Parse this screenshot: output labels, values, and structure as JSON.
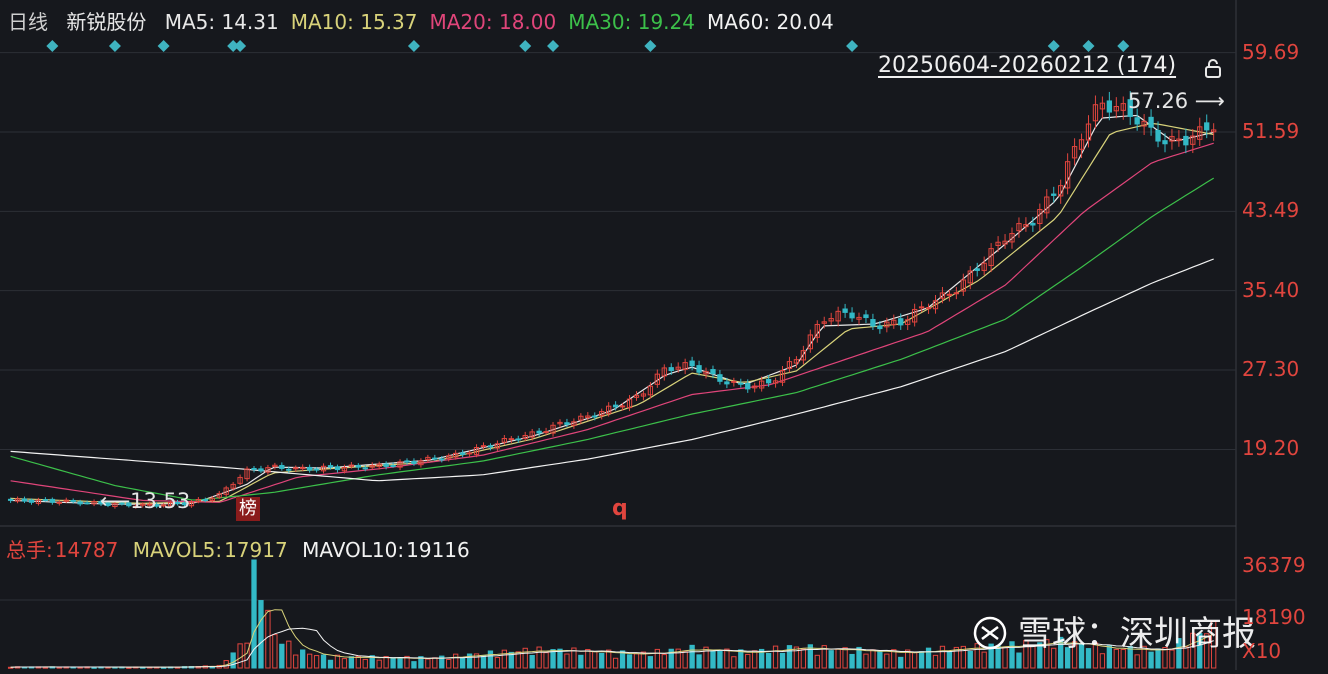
{
  "header": {
    "period": "日线",
    "stock_name": "新锐股份",
    "ma": [
      {
        "label": "MA5:",
        "value": "14.31",
        "color": "#e8e8e8"
      },
      {
        "label": "MA10:",
        "value": "15.37",
        "color": "#d8d27a"
      },
      {
        "label": "MA20:",
        "value": "18.00",
        "color": "#e0457a"
      },
      {
        "label": "MA30:",
        "value": "19.24",
        "color": "#3cc04a"
      },
      {
        "label": "MA60:",
        "value": "20.04",
        "color": "#f2f2f2"
      }
    ]
  },
  "range_label": "20250604-20260212 (174)",
  "high_label": "57.26",
  "low_label": "13.53",
  "badge": "榜",
  "marker_q": "q",
  "volume_header": {
    "total_label": "总手:",
    "total_value": "14787",
    "mavol5_label": "MAVOL5:",
    "mavol5_value": "17917",
    "mavol10_label": "MAVOL10:",
    "mavol10_value": "19116"
  },
  "watermark": "雪球：深圳商报",
  "colors": {
    "up": "#e0453e",
    "down": "#33b9c6",
    "bg": "#16181d",
    "grid": "#2c2f36",
    "diamond": "#3fb3c0"
  },
  "chart_data": {
    "type": "candlestick",
    "count": 174,
    "date_range": [
      "20250604",
      "20260212"
    ],
    "price_axis": {
      "ticks": [
        59.69,
        51.59,
        43.49,
        35.4,
        27.3,
        19.2
      ],
      "range": [
        12.0,
        62.0
      ]
    },
    "volume_axis": {
      "ticks": [
        "36379",
        "18190",
        "X10"
      ],
      "range": [
        0,
        36379
      ]
    },
    "price_keyframes": [
      [
        0,
        14.0
      ],
      [
        10,
        13.9
      ],
      [
        20,
        13.6
      ],
      [
        25,
        13.5
      ],
      [
        30,
        13.6
      ],
      [
        35,
        13.8
      ],
      [
        40,
        14.6
      ],
      [
        45,
        17.0
      ],
      [
        50,
        17.4
      ],
      [
        55,
        17.2
      ],
      [
        60,
        17.3
      ],
      [
        65,
        17.4
      ],
      [
        70,
        17.5
      ],
      [
        75,
        17.8
      ],
      [
        80,
        18.2
      ],
      [
        85,
        18.6
      ],
      [
        90,
        19.4
      ],
      [
        95,
        20.2
      ],
      [
        100,
        20.8
      ],
      [
        105,
        21.8
      ],
      [
        110,
        22.5
      ],
      [
        115,
        23.5
      ],
      [
        120,
        24.6
      ],
      [
        125,
        27.5
      ],
      [
        130,
        27.8
      ],
      [
        135,
        26.4
      ],
      [
        140,
        25.6
      ],
      [
        145,
        26.0
      ],
      [
        150,
        28.5
      ],
      [
        155,
        32.5
      ],
      [
        160,
        33.2
      ],
      [
        165,
        31.8
      ],
      [
        170,
        32.2
      ],
      [
        175,
        34.0
      ],
      [
        180,
        35.3
      ],
      [
        185,
        38.0
      ],
      [
        190,
        41.0
      ],
      [
        195,
        42.5
      ],
      [
        200,
        46.0
      ],
      [
        205,
        52.0
      ],
      [
        208,
        54.5
      ],
      [
        212,
        54.0
      ],
      [
        215,
        53.0
      ],
      [
        218,
        51.5
      ],
      [
        221,
        50.5
      ],
      [
        224,
        50.8
      ],
      [
        227,
        51.5
      ],
      [
        230,
        52.5
      ]
    ],
    "volume_keyframes": [
      [
        0,
        400
      ],
      [
        30,
        300
      ],
      [
        40,
        800
      ],
      [
        45,
        10000
      ],
      [
        47,
        36379
      ],
      [
        50,
        12000
      ],
      [
        55,
        6000
      ],
      [
        60,
        4000
      ],
      [
        80,
        3500
      ],
      [
        90,
        5000
      ],
      [
        100,
        6500
      ],
      [
        110,
        6000
      ],
      [
        120,
        5000
      ],
      [
        130,
        7000
      ],
      [
        140,
        5500
      ],
      [
        150,
        7500
      ],
      [
        160,
        6500
      ],
      [
        170,
        5500
      ],
      [
        180,
        7000
      ],
      [
        190,
        8000
      ],
      [
        200,
        9500
      ],
      [
        210,
        7000
      ],
      [
        220,
        6500
      ],
      [
        230,
        14787
      ]
    ],
    "ma_series": [
      {
        "name": "MA5",
        "color": "#e8e8e8",
        "values": [
          [
            0,
            14.0
          ],
          [
            20,
            13.6
          ],
          [
            35,
            13.7
          ],
          [
            45,
            15.6
          ],
          [
            50,
            17.4
          ],
          [
            60,
            17.3
          ],
          [
            80,
            18.1
          ],
          [
            100,
            20.6
          ],
          [
            115,
            23.2
          ],
          [
            125,
            26.8
          ],
          [
            130,
            27.6
          ],
          [
            140,
            25.8
          ],
          [
            150,
            27.8
          ],
          [
            155,
            31.8
          ],
          [
            165,
            32.0
          ],
          [
            175,
            33.6
          ],
          [
            190,
            40.2
          ],
          [
            200,
            44.8
          ],
          [
            208,
            53.0
          ],
          [
            215,
            53.3
          ],
          [
            222,
            50.6
          ],
          [
            230,
            51.6
          ]
        ]
      },
      {
        "name": "MA10",
        "color": "#d8d27a",
        "values": [
          [
            0,
            14.2
          ],
          [
            25,
            13.7
          ],
          [
            40,
            13.9
          ],
          [
            50,
            16.8
          ],
          [
            60,
            17.2
          ],
          [
            80,
            17.9
          ],
          [
            100,
            20.3
          ],
          [
            120,
            23.8
          ],
          [
            130,
            27.0
          ],
          [
            140,
            26.0
          ],
          [
            150,
            27.2
          ],
          [
            160,
            31.5
          ],
          [
            170,
            32.0
          ],
          [
            185,
            36.5
          ],
          [
            200,
            43.0
          ],
          [
            210,
            51.5
          ],
          [
            218,
            52.5
          ],
          [
            230,
            51.3
          ]
        ]
      },
      {
        "name": "MA20",
        "color": "#e0457a",
        "values": [
          [
            0,
            16.0
          ],
          [
            25,
            14.0
          ],
          [
            40,
            13.8
          ],
          [
            55,
            16.4
          ],
          [
            70,
            17.2
          ],
          [
            90,
            18.6
          ],
          [
            110,
            21.2
          ],
          [
            130,
            24.8
          ],
          [
            145,
            25.8
          ],
          [
            160,
            28.5
          ],
          [
            175,
            31.2
          ],
          [
            190,
            36.0
          ],
          [
            205,
            43.5
          ],
          [
            218,
            48.5
          ],
          [
            230,
            50.5
          ]
        ]
      },
      {
        "name": "MA30",
        "color": "#3cc04a",
        "values": [
          [
            0,
            18.5
          ],
          [
            20,
            15.5
          ],
          [
            35,
            14.0
          ],
          [
            50,
            14.8
          ],
          [
            70,
            16.6
          ],
          [
            90,
            18.0
          ],
          [
            110,
            20.2
          ],
          [
            130,
            22.8
          ],
          [
            150,
            25.0
          ],
          [
            170,
            28.4
          ],
          [
            190,
            32.5
          ],
          [
            205,
            38.0
          ],
          [
            218,
            43.0
          ],
          [
            230,
            47.0
          ]
        ]
      },
      {
        "name": "MA60",
        "color": "#f2f2f2",
        "values": [
          [
            0,
            19.0
          ],
          [
            40,
            17.4
          ],
          [
            70,
            16.0
          ],
          [
            90,
            16.6
          ],
          [
            110,
            18.2
          ],
          [
            130,
            20.2
          ],
          [
            150,
            22.8
          ],
          [
            170,
            25.6
          ],
          [
            190,
            29.2
          ],
          [
            205,
            33.0
          ],
          [
            218,
            36.2
          ],
          [
            230,
            38.7
          ]
        ]
      }
    ],
    "marker_positions": [
      6,
      15,
      22,
      32,
      33,
      58,
      74,
      78,
      92,
      121,
      150,
      155,
      160
    ]
  }
}
